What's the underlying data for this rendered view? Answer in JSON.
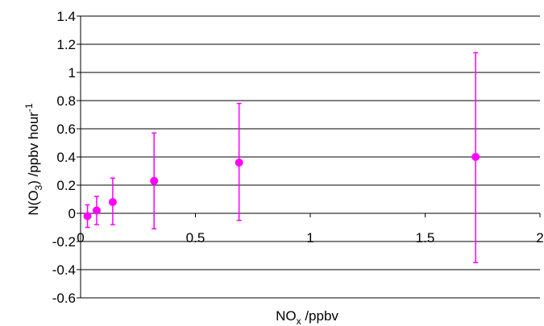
{
  "chart_data": {
    "type": "scatter",
    "title": "",
    "xlabel": {
      "base": "NO",
      "sub": "x",
      "rest": " /ppbv"
    },
    "ylabel": {
      "pre": "N(O",
      "sub": "3",
      "mid": ") /ppbv hour",
      "sup": "-1"
    },
    "xlim": [
      0,
      2
    ],
    "ylim": [
      -0.6,
      1.4
    ],
    "xticks": [
      "0",
      "0.5",
      "1",
      "1.5",
      "2"
    ],
    "yticks": [
      "-0.6",
      "-0.4",
      "-0.2",
      "0",
      "0.2",
      "0.4",
      "0.6",
      "0.8",
      "1",
      "1.2",
      "1.4"
    ],
    "grid": "horizontal",
    "legend": "none",
    "marker_color": "#ff00ff",
    "points": [
      {
        "x": 0.03,
        "y": -0.02,
        "err_low": -0.1,
        "err_high": 0.06
      },
      {
        "x": 0.07,
        "y": 0.02,
        "err_low": -0.08,
        "err_high": 0.12
      },
      {
        "x": 0.14,
        "y": 0.08,
        "err_low": -0.08,
        "err_high": 0.25
      },
      {
        "x": 0.32,
        "y": 0.23,
        "err_low": -0.11,
        "err_high": 0.57
      },
      {
        "x": 0.69,
        "y": 0.36,
        "err_low": -0.05,
        "err_high": 0.78
      },
      {
        "x": 1.72,
        "y": 0.4,
        "err_low": -0.35,
        "err_high": 1.14
      }
    ]
  }
}
